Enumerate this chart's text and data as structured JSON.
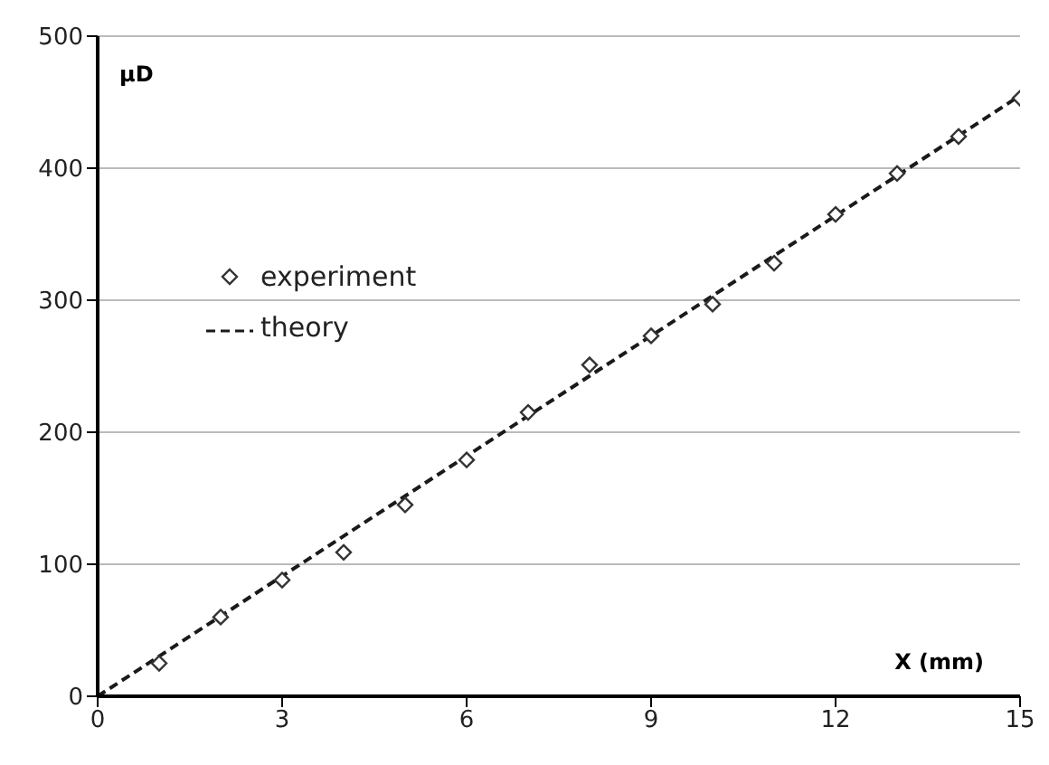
{
  "chart_data": {
    "type": "scatter",
    "xlabel": "X (mm)",
    "ylabel": "μD",
    "xlim": [
      0,
      15
    ],
    "xticks": [
      0,
      3,
      6,
      9,
      12,
      15
    ],
    "ylim": [
      0,
      500
    ],
    "yticks": [
      0,
      100,
      200,
      300,
      400,
      500
    ],
    "grid": "y",
    "legend": "left",
    "series": [
      {
        "name": "experiment",
        "marker": "diamond",
        "color": "#333333",
        "x": [
          1,
          2,
          3,
          4,
          5,
          6,
          7,
          8,
          9,
          10,
          11,
          12,
          13,
          14,
          15
        ],
        "values": [
          25,
          60,
          88,
          109,
          145,
          179,
          215,
          251,
          273,
          297,
          328,
          365,
          396,
          424,
          453
        ]
      },
      {
        "name": "theory",
        "type": "line",
        "marker": "none",
        "line_style": "dashed",
        "color": "#1a1a1a",
        "x": [
          0,
          15
        ],
        "values": [
          0,
          455
        ]
      }
    ]
  }
}
